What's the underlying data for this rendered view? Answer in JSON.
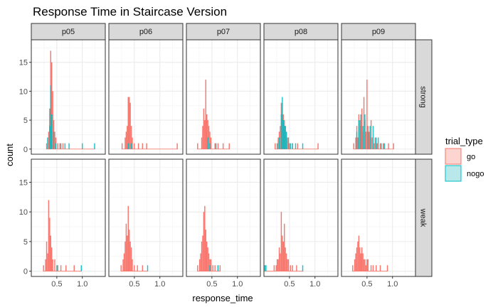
{
  "chart_data": {
    "type": "histogram",
    "title": "Response Time in Staircase  Version",
    "xlabel": "response_time",
    "ylabel": "count",
    "xlim": [
      0.0,
      1.45
    ],
    "ylim": [
      0,
      18
    ],
    "xticks": [
      0.5,
      1.0
    ],
    "xtick_labels": [
      "0.5",
      "1.0"
    ],
    "yticks": [
      0,
      5,
      10,
      15
    ],
    "ytick_labels": [
      "0",
      "5",
      "10",
      "15"
    ],
    "grid": true,
    "bin_width": 0.02,
    "columns": [
      "p05",
      "p06",
      "p07",
      "p08",
      "p09"
    ],
    "rows": [
      "strong",
      "weak"
    ],
    "legend": {
      "title": "trial_type",
      "position": "right",
      "entries": [
        {
          "key": "go",
          "label": "go",
          "fill": "#f8766d",
          "legend_fill": "#fcd5d1",
          "stroke": "#f8766d"
        },
        {
          "key": "nogo",
          "label": "nogo",
          "fill": "#00bfc4",
          "legend_fill": "#b8e8e9",
          "stroke": "#00bfc4"
        }
      ]
    },
    "panels": [
      {
        "col": "p05",
        "row": "strong",
        "go": [
          [
            0.3,
            1
          ],
          [
            0.34,
            3
          ],
          [
            0.36,
            7
          ],
          [
            0.38,
            17
          ],
          [
            0.4,
            15
          ],
          [
            0.42,
            10
          ],
          [
            0.44,
            5
          ],
          [
            0.46,
            3
          ],
          [
            0.48,
            2
          ],
          [
            0.52,
            1
          ],
          [
            0.56,
            1
          ],
          [
            0.62,
            1
          ]
        ],
        "nogo": [
          [
            0.32,
            2
          ],
          [
            0.36,
            4
          ],
          [
            0.38,
            11
          ],
          [
            0.4,
            6
          ],
          [
            0.44,
            3
          ],
          [
            0.48,
            1
          ],
          [
            0.58,
            1
          ],
          [
            0.66,
            1
          ],
          [
            0.74,
            1
          ],
          [
            1.0,
            1
          ],
          [
            1.24,
            1
          ]
        ]
      },
      {
        "col": "p06",
        "row": "strong",
        "go": [
          [
            0.26,
            1
          ],
          [
            0.32,
            2
          ],
          [
            0.34,
            3
          ],
          [
            0.36,
            4
          ],
          [
            0.38,
            9
          ],
          [
            0.4,
            9
          ],
          [
            0.42,
            8
          ],
          [
            0.44,
            4
          ],
          [
            0.46,
            2
          ],
          [
            0.5,
            1
          ],
          [
            0.58,
            1
          ],
          [
            0.66,
            1
          ],
          [
            0.74,
            1
          ],
          [
            1.34,
            1
          ]
        ],
        "nogo": [
          [
            0.38,
            1
          ],
          [
            0.44,
            1
          ]
        ]
      },
      {
        "col": "p07",
        "row": "strong",
        "go": [
          [
            0.22,
            1
          ],
          [
            0.3,
            2
          ],
          [
            0.32,
            4
          ],
          [
            0.34,
            7
          ],
          [
            0.36,
            5
          ],
          [
            0.38,
            12
          ],
          [
            0.4,
            6
          ],
          [
            0.42,
            5
          ],
          [
            0.44,
            4
          ],
          [
            0.46,
            3
          ],
          [
            0.48,
            2
          ],
          [
            0.56,
            1
          ],
          [
            0.62,
            1
          ],
          [
            0.72,
            1
          ],
          [
            0.84,
            1
          ]
        ],
        "nogo": [
          [
            0.42,
            2
          ],
          [
            0.46,
            1
          ],
          [
            0.58,
            1
          ]
        ]
      },
      {
        "col": "p08",
        "row": "strong",
        "go": [
          [
            0.22,
            1
          ],
          [
            0.28,
            2
          ],
          [
            0.3,
            3
          ],
          [
            0.32,
            4
          ],
          [
            0.34,
            8
          ],
          [
            0.36,
            8
          ],
          [
            0.38,
            6
          ],
          [
            0.4,
            5
          ],
          [
            0.42,
            4
          ],
          [
            0.44,
            3
          ],
          [
            0.46,
            2
          ],
          [
            0.5,
            1
          ],
          [
            0.56,
            1
          ],
          [
            0.66,
            1
          ],
          [
            1.06,
            1
          ]
        ],
        "nogo": [
          [
            0.26,
            1
          ],
          [
            0.3,
            2
          ],
          [
            0.34,
            6
          ],
          [
            0.36,
            9
          ],
          [
            0.38,
            5
          ],
          [
            0.4,
            4
          ],
          [
            0.42,
            4
          ],
          [
            0.44,
            3
          ],
          [
            0.48,
            2
          ],
          [
            0.52,
            1
          ],
          [
            0.56,
            1
          ],
          [
            0.62,
            1
          ],
          [
            0.76,
            1
          ]
        ]
      },
      {
        "col": "p09",
        "row": "strong",
        "go": [
          [
            0.24,
            1
          ],
          [
            0.28,
            2
          ],
          [
            0.3,
            4
          ],
          [
            0.32,
            2
          ],
          [
            0.34,
            6
          ],
          [
            0.36,
            5
          ],
          [
            0.38,
            4
          ],
          [
            0.4,
            7
          ],
          [
            0.42,
            3
          ],
          [
            0.44,
            9
          ],
          [
            0.46,
            5
          ],
          [
            0.48,
            3
          ],
          [
            0.5,
            12
          ],
          [
            0.52,
            4
          ],
          [
            0.54,
            3
          ],
          [
            0.56,
            2
          ],
          [
            0.58,
            5
          ],
          [
            0.6,
            2
          ],
          [
            0.64,
            1
          ],
          [
            0.66,
            2
          ],
          [
            0.7,
            1
          ],
          [
            0.76,
            1
          ],
          [
            0.82,
            1
          ],
          [
            0.92,
            1
          ],
          [
            1.02,
            1
          ]
        ],
        "nogo": [
          [
            0.3,
            3
          ],
          [
            0.34,
            5
          ],
          [
            0.38,
            6
          ],
          [
            0.42,
            4
          ],
          [
            0.46,
            6
          ],
          [
            0.52,
            3
          ],
          [
            0.56,
            4
          ],
          [
            0.62,
            4
          ],
          [
            0.68,
            2
          ],
          [
            0.72,
            2
          ],
          [
            0.78,
            1
          ],
          [
            0.84,
            1
          ]
        ]
      },
      {
        "col": "p05",
        "row": "weak",
        "go": [
          [
            0.24,
            1
          ],
          [
            0.28,
            2
          ],
          [
            0.3,
            5
          ],
          [
            0.32,
            3
          ],
          [
            0.34,
            12
          ],
          [
            0.36,
            9
          ],
          [
            0.38,
            6
          ],
          [
            0.4,
            4
          ],
          [
            0.42,
            2
          ],
          [
            0.46,
            2
          ],
          [
            0.52,
            1
          ],
          [
            0.58,
            1
          ],
          [
            0.68,
            1
          ],
          [
            0.84,
            1
          ]
        ],
        "nogo": [
          [
            0.5,
            1
          ],
          [
            0.98,
            1
          ]
        ]
      },
      {
        "col": "p06",
        "row": "weak",
        "go": [
          [
            0.24,
            1
          ],
          [
            0.28,
            2
          ],
          [
            0.3,
            3
          ],
          [
            0.32,
            5
          ],
          [
            0.34,
            8
          ],
          [
            0.36,
            6
          ],
          [
            0.38,
            11
          ],
          [
            0.4,
            7
          ],
          [
            0.42,
            5
          ],
          [
            0.44,
            4
          ],
          [
            0.46,
            2
          ],
          [
            0.5,
            1
          ],
          [
            0.56,
            1
          ],
          [
            0.66,
            1
          ]
        ],
        "nogo": [
          [
            0.76,
            1
          ]
        ]
      },
      {
        "col": "p07",
        "row": "weak",
        "go": [
          [
            0.22,
            1
          ],
          [
            0.26,
            2
          ],
          [
            0.28,
            3
          ],
          [
            0.3,
            5
          ],
          [
            0.32,
            6
          ],
          [
            0.34,
            10
          ],
          [
            0.36,
            11
          ],
          [
            0.38,
            7
          ],
          [
            0.4,
            5
          ],
          [
            0.42,
            4
          ],
          [
            0.44,
            3
          ],
          [
            0.46,
            2
          ],
          [
            0.48,
            2
          ],
          [
            0.52,
            1
          ],
          [
            0.56,
            1
          ],
          [
            0.62,
            1
          ],
          [
            0.66,
            1
          ]
        ],
        "nogo": [
          [
            0.46,
            1
          ],
          [
            0.62,
            1
          ]
        ]
      },
      {
        "col": "p08",
        "row": "weak",
        "go": [
          [
            0.2,
            1
          ],
          [
            0.24,
            1
          ],
          [
            0.26,
            2
          ],
          [
            0.28,
            2
          ],
          [
            0.3,
            4
          ],
          [
            0.32,
            3
          ],
          [
            0.34,
            10
          ],
          [
            0.36,
            6
          ],
          [
            0.38,
            5
          ],
          [
            0.4,
            8
          ],
          [
            0.42,
            4
          ],
          [
            0.44,
            3
          ],
          [
            0.46,
            2
          ],
          [
            0.48,
            2
          ],
          [
            0.52,
            1
          ],
          [
            0.56,
            1
          ],
          [
            0.64,
            1
          ]
        ],
        "nogo": [
          [
            0.02,
            1
          ],
          [
            0.04,
            1
          ],
          [
            0.76,
            1
          ]
        ]
      },
      {
        "col": "p09",
        "row": "weak",
        "go": [
          [
            0.22,
            1
          ],
          [
            0.26,
            2
          ],
          [
            0.28,
            3
          ],
          [
            0.3,
            4
          ],
          [
            0.32,
            5
          ],
          [
            0.34,
            6
          ],
          [
            0.36,
            4
          ],
          [
            0.38,
            3
          ],
          [
            0.4,
            4
          ],
          [
            0.42,
            3
          ],
          [
            0.44,
            2
          ],
          [
            0.46,
            2
          ],
          [
            0.48,
            1
          ],
          [
            0.5,
            2
          ],
          [
            0.52,
            2
          ],
          [
            0.58,
            1
          ],
          [
            0.62,
            1
          ],
          [
            0.68,
            1
          ],
          [
            0.76,
            1
          ],
          [
            0.9,
            1
          ]
        ],
        "nogo": []
      }
    ]
  }
}
